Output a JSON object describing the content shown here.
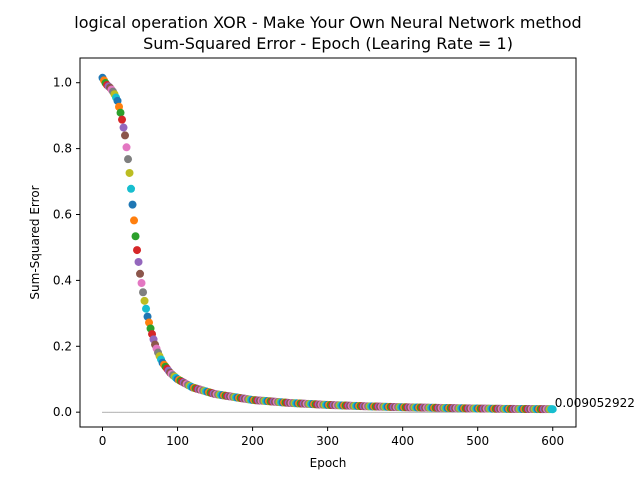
{
  "chart_data": {
    "type": "scatter",
    "title": "logical operation XOR - Make Your Own Neural Network method",
    "subtitle": "Sum-Squared Error - Epoch (Learing Rate = 1)",
    "xlabel": "Epoch",
    "ylabel": "Sum-Squared Error",
    "xlim": [
      -30,
      631
    ],
    "ylim": [
      -0.045,
      1.075
    ],
    "xticks": [
      "0",
      "100",
      "200",
      "300",
      "400",
      "500",
      "600"
    ],
    "yticks": [
      "0.0",
      "0.2",
      "0.4",
      "0.6",
      "0.8",
      "1.0"
    ],
    "xtick_values": [
      0,
      100,
      200,
      300,
      400,
      500,
      600
    ],
    "ytick_values": [
      0.0,
      0.2,
      0.4,
      0.6,
      0.8,
      1.0
    ],
    "grid": false,
    "epochs": 600,
    "x_step": 2,
    "curve_keypoints": [
      [
        0,
        1.015
      ],
      [
        5,
        0.995
      ],
      [
        10,
        0.985
      ],
      [
        15,
        0.97
      ],
      [
        20,
        0.945
      ],
      [
        25,
        0.9
      ],
      [
        30,
        0.84
      ],
      [
        35,
        0.75
      ],
      [
        40,
        0.63
      ],
      [
        45,
        0.51
      ],
      [
        50,
        0.42
      ],
      [
        55,
        0.35
      ],
      [
        60,
        0.29
      ],
      [
        65,
        0.245
      ],
      [
        70,
        0.205
      ],
      [
        75,
        0.175
      ],
      [
        80,
        0.15
      ],
      [
        90,
        0.12
      ],
      [
        100,
        0.1
      ],
      [
        120,
        0.075
      ],
      [
        150,
        0.055
      ],
      [
        200,
        0.037
      ],
      [
        250,
        0.028
      ],
      [
        300,
        0.022
      ],
      [
        350,
        0.018
      ],
      [
        400,
        0.015
      ],
      [
        450,
        0.013
      ],
      [
        500,
        0.011
      ],
      [
        550,
        0.0098
      ],
      [
        600,
        0.00905
      ]
    ],
    "final_point": {
      "x": 600,
      "y": 0.009052922
    },
    "annotation": "0.009052922",
    "reference_line_y": 0.0,
    "marker_colors": [
      "#1f77b4",
      "#ff7f0e",
      "#2ca02c",
      "#d62728",
      "#9467bd",
      "#8c564b",
      "#e377c2",
      "#7f7f7f",
      "#bcbd22",
      "#17becf"
    ]
  }
}
